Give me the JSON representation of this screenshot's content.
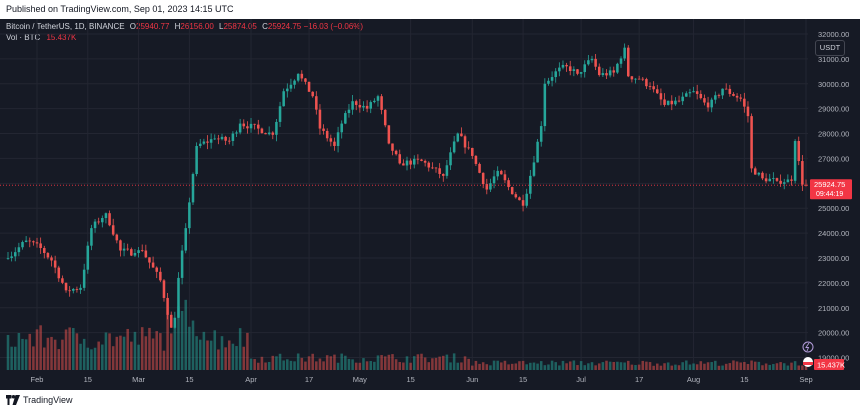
{
  "header": {
    "published": "Published on TradingView.com, Sep 01, 2023 14:15 UTC"
  },
  "legend": {
    "symbol": "Bitcoin / TetherUS, 1D, BINANCE",
    "open_label": "O",
    "open": "25940.77",
    "high_label": "H",
    "high": "26156.00",
    "low_label": "L",
    "low": "25874.05",
    "close_label": "C",
    "close": "25924.75",
    "change": "−16.03 (−0.06%)",
    "vol_label": "Vol · BTC",
    "vol_value": "15.437K"
  },
  "currency_button": "USDT",
  "footer": {
    "brand": "TradingView"
  },
  "colors": {
    "background": "#161a25",
    "up": "#26a69a",
    "down": "#ef5350",
    "price_label": "#f23645",
    "grid": "#232632",
    "axis_text": "#b2b5be"
  },
  "price_label": {
    "price": "25924.75",
    "countdown": "09:44:19"
  },
  "volume_label": "15.437K",
  "chart_data": {
    "type": "candlestick",
    "title": "Bitcoin / TetherUS, 1D, BINANCE",
    "y_axis": {
      "ticks": [
        19000,
        20000,
        21000,
        22000,
        23000,
        24000,
        25000,
        26000,
        27000,
        28000,
        29000,
        30000,
        31000,
        32000
      ],
      "tick_labels": [
        "19000.00",
        "20000.00",
        "21000.00",
        "22000.00",
        "23000.00",
        "24000.00",
        "25000.00",
        "26000.00",
        "27000.00",
        "28000.00",
        "29000.00",
        "30000.00",
        "31000.00",
        "32000.00"
      ],
      "ylim": [
        18500,
        32200
      ],
      "position": "right"
    },
    "x_axis": {
      "labels": [
        "Feb",
        "15",
        "Mar",
        "15",
        "Apr",
        "17",
        "May",
        "15",
        "Jun",
        "15",
        "Jul",
        "17",
        "Aug",
        "15",
        "Sep"
      ],
      "label_dates": [
        "2023-02-01",
        "2023-02-15",
        "2023-03-01",
        "2023-03-15",
        "2023-04-01",
        "2023-04-17",
        "2023-05-01",
        "2023-05-15",
        "2023-06-01",
        "2023-06-15",
        "2023-07-01",
        "2023-07-17",
        "2023-08-01",
        "2023-08-15",
        "2023-09-01"
      ],
      "range": [
        "2023-01-24",
        "2023-09-01"
      ]
    },
    "grid": true,
    "anchors": [
      [
        "2023-01-24",
        23000
      ],
      [
        "2023-01-29",
        23700
      ],
      [
        "2023-02-02",
        23400
      ],
      [
        "2023-02-05",
        22900
      ],
      [
        "2023-02-09",
        21700
      ],
      [
        "2023-02-13",
        21800
      ],
      [
        "2023-02-16",
        24200
      ],
      [
        "2023-02-20",
        24800
      ],
      [
        "2023-02-24",
        23300
      ],
      [
        "2023-02-28",
        23200
      ],
      [
        "2023-03-02",
        23300
      ],
      [
        "2023-03-07",
        22100
      ],
      [
        "2023-03-10",
        20200
      ],
      [
        "2023-03-11",
        20600
      ],
      [
        "2023-03-12",
        22200
      ],
      [
        "2023-03-14",
        24200
      ],
      [
        "2023-03-17",
        27500
      ],
      [
        "2023-03-22",
        27800
      ],
      [
        "2023-03-26",
        27700
      ],
      [
        "2023-03-29",
        28400
      ],
      [
        "2023-04-03",
        28200
      ],
      [
        "2023-04-07",
        27950
      ],
      [
        "2023-04-10",
        29700
      ],
      [
        "2023-04-14",
        30400
      ],
      [
        "2023-04-18",
        29500
      ],
      [
        "2023-04-20",
        28200
      ],
      [
        "2023-04-24",
        27500
      ],
      [
        "2023-04-26",
        28400
      ],
      [
        "2023-04-29",
        29300
      ],
      [
        "2023-05-03",
        29000
      ],
      [
        "2023-05-06",
        29500
      ],
      [
        "2023-05-09",
        27600
      ],
      [
        "2023-05-12",
        26800
      ],
      [
        "2023-05-18",
        26900
      ],
      [
        "2023-05-24",
        26300
      ],
      [
        "2023-05-28",
        28000
      ],
      [
        "2023-06-01",
        27100
      ],
      [
        "2023-06-05",
        25750
      ],
      [
        "2023-06-08",
        26500
      ],
      [
        "2023-06-11",
        25850
      ],
      [
        "2023-06-15",
        25100
      ],
      [
        "2023-06-17",
        26300
      ],
      [
        "2023-06-20",
        28300
      ],
      [
        "2023-06-21",
        30000
      ],
      [
        "2023-06-24",
        30500
      ],
      [
        "2023-06-27",
        30700
      ],
      [
        "2023-06-30",
        30400
      ],
      [
        "2023-07-04",
        31000
      ],
      [
        "2023-07-06",
        30350
      ],
      [
        "2023-07-10",
        30450
      ],
      [
        "2023-07-13",
        31450
      ],
      [
        "2023-07-14",
        30300
      ],
      [
        "2023-07-17",
        30200
      ],
      [
        "2023-07-20",
        29900
      ],
      [
        "2023-07-24",
        29150
      ],
      [
        "2023-07-28",
        29300
      ],
      [
        "2023-08-01",
        29700
      ],
      [
        "2023-08-05",
        29050
      ],
      [
        "2023-08-09",
        29800
      ],
      [
        "2023-08-14",
        29400
      ],
      [
        "2023-08-16",
        28700
      ],
      [
        "2023-08-17",
        26600
      ],
      [
        "2023-08-20",
        26200
      ],
      [
        "2023-08-24",
        26100
      ],
      [
        "2023-08-28",
        26100
      ],
      [
        "2023-08-29",
        27700
      ],
      [
        "2023-08-31",
        25950
      ],
      [
        "2023-09-01",
        25925
      ]
    ],
    "volume_axis_ratio": 0.18
  }
}
